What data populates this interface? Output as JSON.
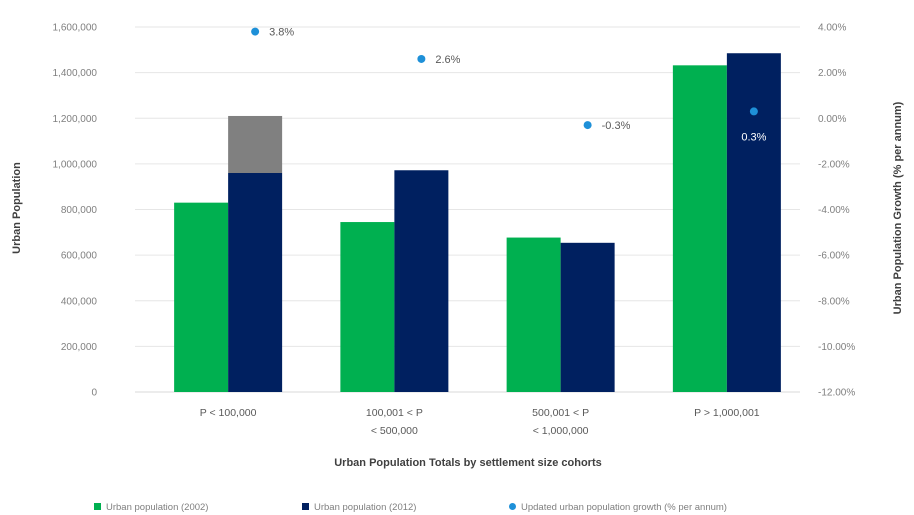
{
  "chart_data": {
    "type": "bar",
    "categories": [
      [
        "P < 100,000"
      ],
      [
        "100,001 < P",
        "< 500,000"
      ],
      [
        "500,001 < P",
        "< 1,000,000"
      ],
      [
        "P > 1,000,001"
      ]
    ],
    "series": [
      {
        "name": "Urban population (2002)",
        "values": [
          830000,
          745000,
          677000,
          1432000
        ],
        "color": "#00b050"
      },
      {
        "name": "Urban population (2012)",
        "values": [
          960000,
          972000,
          654000,
          1485000
        ],
        "color": "#002060"
      },
      {
        "name": "Updated urban population growth (% per annum)",
        "type": "scatter",
        "axis": "right",
        "values": [
          3.8,
          2.6,
          -0.3,
          0.3
        ],
        "labels": [
          "3.8%",
          "2.6%",
          "-0.3%",
          "0.3%"
        ],
        "color": "#1e90d8"
      }
    ],
    "stacked_extra": {
      "category_index": 0,
      "on_series": 1,
      "value": 250000,
      "color": "#808080"
    },
    "xlabel": "Urban Population Totals by settlement size cohorts",
    "ylabel": "Urban Population",
    "y2label": "Urban Population  Growth (% per annum)",
    "ylim": [
      0,
      1600000
    ],
    "y2lim": [
      -12,
      4
    ],
    "yticks": [
      "0",
      "200,000",
      "400,000",
      "600,000",
      "800,000",
      "1,000,000",
      "1,200,000",
      "1,400,000",
      "1,600,000"
    ],
    "y2ticks": [
      "-12.00%",
      "-10.00%",
      "-8.00%",
      "-6.00%",
      "-4.00%",
      "-2.00%",
      "0.00%",
      "2.00%",
      "4.00%"
    ],
    "grid": true,
    "legend": "bottom"
  }
}
